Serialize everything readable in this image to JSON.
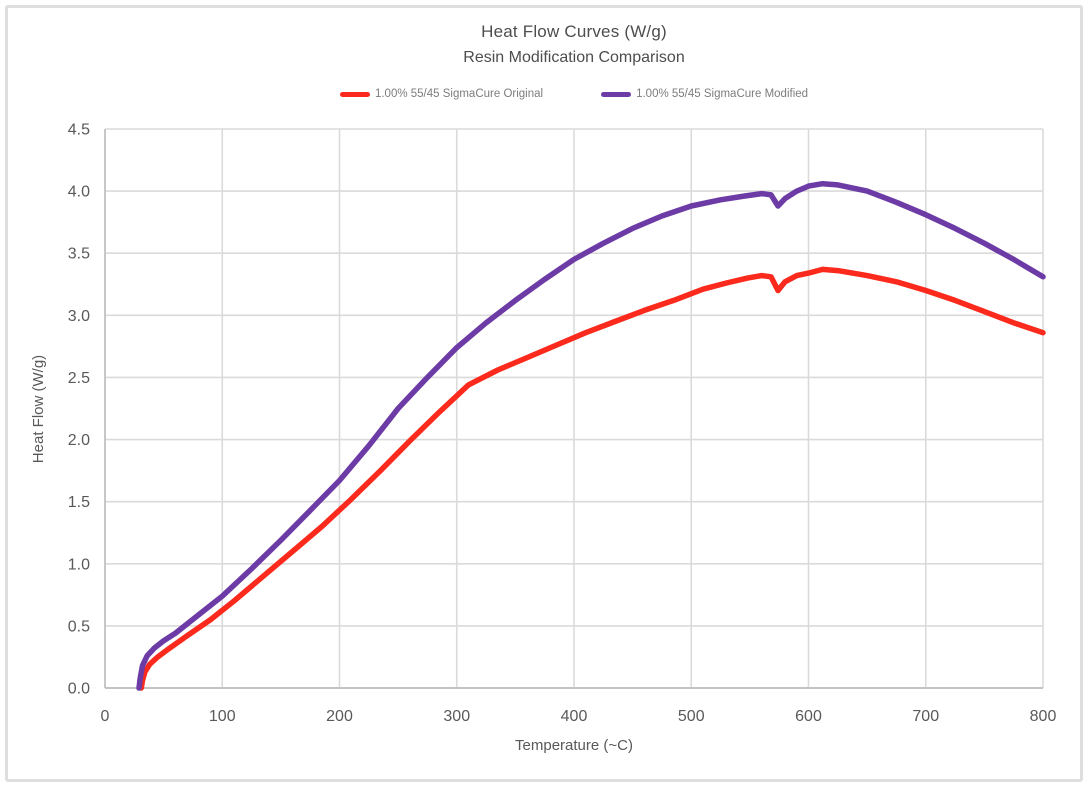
{
  "chart_data": {
    "type": "line",
    "title": "Heat Flow Curves (W/g)",
    "subtitle": "Resin Modification Comparison",
    "xlabel": "Temperature (~C)",
    "ylabel": "Heat Flow (W/g)",
    "xlim": [
      0,
      800
    ],
    "ylim": [
      0,
      4.5
    ],
    "x_ticks": [
      "0",
      "100",
      "200",
      "300",
      "400",
      "500",
      "600",
      "700",
      "800"
    ],
    "y_ticks": [
      "0.0",
      "0.5",
      "1.0",
      "1.5",
      "2.0",
      "2.5",
      "3.0",
      "3.5",
      "4.0",
      "4.5"
    ],
    "grid": true,
    "legend_position": "top",
    "series": [
      {
        "name": "1.00% 55/45 SigmaCure Original",
        "color": "#fb2a1c",
        "x": [
          31,
          32,
          34,
          38,
          45,
          55,
          70,
          90,
          110,
          135,
          160,
          185,
          210,
          235,
          260,
          285,
          310,
          335,
          360,
          385,
          410,
          435,
          460,
          485,
          510,
          530,
          548,
          560,
          568,
          574,
          580,
          590,
          600,
          612,
          625,
          650,
          675,
          700,
          725,
          750,
          775,
          800
        ],
        "y": [
          0.0,
          0.06,
          0.13,
          0.19,
          0.25,
          0.32,
          0.42,
          0.55,
          0.7,
          0.9,
          1.1,
          1.3,
          1.52,
          1.75,
          1.99,
          2.22,
          2.44,
          2.56,
          2.66,
          2.76,
          2.86,
          2.95,
          3.04,
          3.12,
          3.21,
          3.26,
          3.3,
          3.32,
          3.31,
          3.2,
          3.27,
          3.32,
          3.34,
          3.37,
          3.36,
          3.32,
          3.27,
          3.2,
          3.12,
          3.03,
          2.94,
          2.86
        ]
      },
      {
        "name": "1.00% 55/45 SigmaCure Modified",
        "color": "#6c3ba5",
        "x": [
          29,
          30,
          32,
          36,
          42,
          50,
          60,
          80,
          100,
          125,
          150,
          175,
          200,
          225,
          250,
          275,
          300,
          325,
          350,
          375,
          400,
          425,
          450,
          475,
          500,
          525,
          545,
          560,
          568,
          574,
          580,
          590,
          600,
          612,
          625,
          650,
          675,
          700,
          725,
          750,
          775,
          800
        ],
        "y": [
          0.0,
          0.08,
          0.18,
          0.26,
          0.32,
          0.38,
          0.44,
          0.59,
          0.74,
          0.96,
          1.19,
          1.43,
          1.67,
          1.95,
          2.25,
          2.5,
          2.74,
          2.94,
          3.12,
          3.29,
          3.45,
          3.58,
          3.7,
          3.8,
          3.88,
          3.93,
          3.96,
          3.98,
          3.97,
          3.88,
          3.94,
          4.0,
          4.04,
          4.06,
          4.05,
          4.0,
          3.91,
          3.81,
          3.7,
          3.58,
          3.45,
          3.31
        ]
      }
    ]
  },
  "colors": {
    "gridline": "#dadada",
    "axis_line": "#c3c3c3",
    "tick_text": "#595959",
    "title_text": "#4d4d4d",
    "legend_text": "#7d7d7d",
    "frame_border": "#dedede"
  }
}
